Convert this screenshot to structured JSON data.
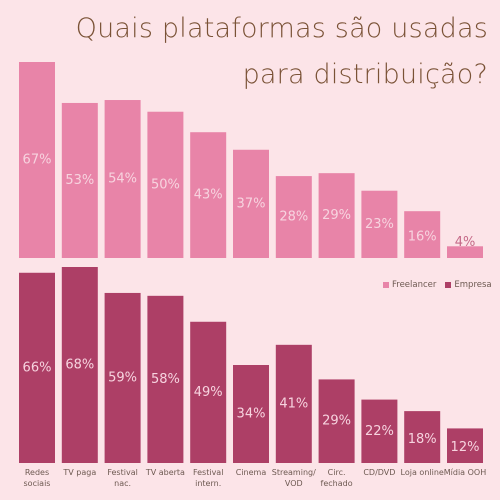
{
  "title_line1": "Quais plataformas são usadas",
  "title_line2": "para distribuição?",
  "colors": {
    "background": "#fce4e8",
    "freelancer": "#e884a8",
    "empresa": "#ad3f66",
    "label_light": "#f7d3df",
    "label_dark_on_bg": "#c56a88",
    "title": "#7a5236"
  },
  "chart_data": [
    {
      "type": "bar",
      "categories": [
        "Redes\nsociais",
        "TV paga",
        "Festival\nnac.",
        "TV aberta",
        "Festival\nintern.",
        "Cinema",
        "Streaming/\nVOD",
        "Circ.\nfechado",
        "CD/DVD",
        "Loja  online",
        "Mídia  OOH"
      ],
      "series": [
        {
          "name": "Freelancer",
          "values": [
            67,
            53,
            54,
            50,
            43,
            37,
            28,
            29,
            23,
            16,
            4
          ]
        }
      ],
      "value_labels": [
        "67%",
        "53%",
        "54%",
        "50%",
        "43%",
        "37%",
        "28%",
        "29%",
        "23%",
        "16%",
        "4%"
      ],
      "ylim": [
        0,
        70
      ]
    },
    {
      "type": "bar",
      "categories": [
        "Redes\nsociais",
        "TV paga",
        "Festival\nnac.",
        "TV aberta",
        "Festival\nintern.",
        "Cinema",
        "Streaming/\nVOD",
        "Circ.\nfechado",
        "CD/DVD",
        "Loja  online",
        "Mídia  OOH"
      ],
      "series": [
        {
          "name": "Empresa",
          "values": [
            66,
            68,
            59,
            58,
            49,
            34,
            41,
            29,
            22,
            18,
            12
          ]
        }
      ],
      "value_labels": [
        "66%",
        "68%",
        "59%",
        "58%",
        "49%",
        "34%",
        "41%",
        "29%",
        "22%",
        "18%",
        "12%"
      ],
      "ylim": [
        0,
        70
      ]
    }
  ],
  "legend": {
    "items": [
      "Freelancer",
      "Empresa"
    ],
    "placement": "right, between panels"
  }
}
